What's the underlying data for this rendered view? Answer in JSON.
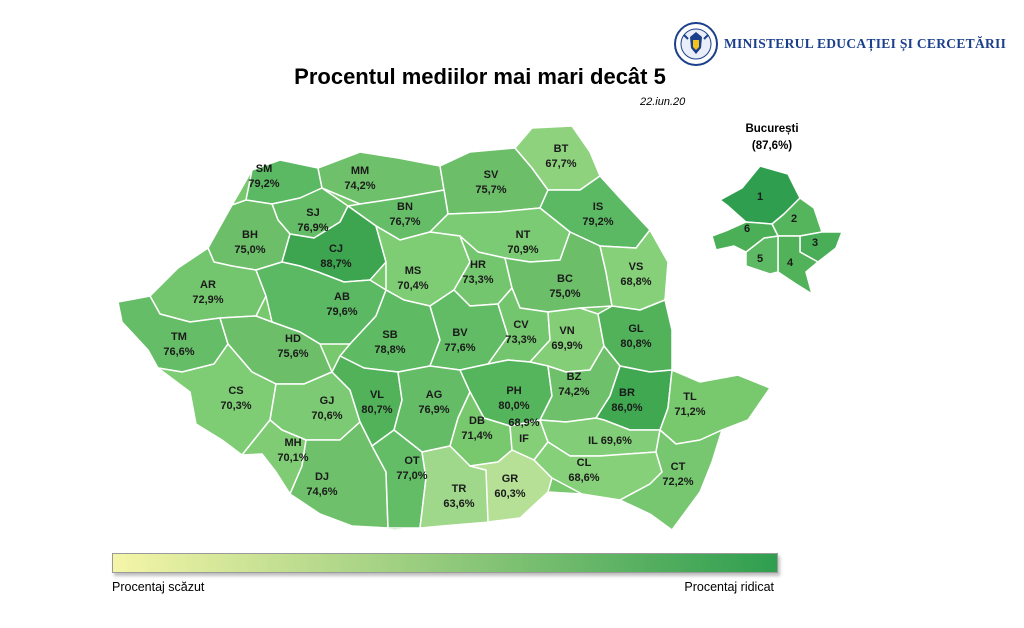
{
  "header": {
    "ministry_name": "MINISTERUL EDUCAȚIEI ȘI CERCETĂRII",
    "seal_icon": "romanian-coat-of-arms-seal",
    "seal_text": "GUVERNUL ROMÂNIEI"
  },
  "title": "Procentul mediilor mai mari decât 5",
  "date": "22.iun.20",
  "colors": {
    "low": "#f5f5a8",
    "high": "#2f9e4f",
    "county_border": "#ffffff",
    "seal_blue": "#1b3f8c"
  },
  "counties": [
    {
      "code": "SM",
      "value": "79,2%"
    },
    {
      "code": "MM",
      "value": "74,2%"
    },
    {
      "code": "SV",
      "value": "75,7%"
    },
    {
      "code": "BT",
      "value": "67,7%"
    },
    {
      "code": "SJ",
      "value": "76,9%"
    },
    {
      "code": "BN",
      "value": "76,7%"
    },
    {
      "code": "IS",
      "value": "79,2%"
    },
    {
      "code": "BH",
      "value": "75,0%"
    },
    {
      "code": "CJ",
      "value": "88,7%"
    },
    {
      "code": "NT",
      "value": "70,9%"
    },
    {
      "code": "MS",
      "value": "70,4%"
    },
    {
      "code": "HR",
      "value": "73,3%"
    },
    {
      "code": "BC",
      "value": "75,0%"
    },
    {
      "code": "VS",
      "value": "68,8%"
    },
    {
      "code": "AR",
      "value": "72,9%"
    },
    {
      "code": "AB",
      "value": "79,6%"
    },
    {
      "code": "TM",
      "value": "76,6%"
    },
    {
      "code": "HD",
      "value": "75,6%"
    },
    {
      "code": "SB",
      "value": "78,8%"
    },
    {
      "code": "BV",
      "value": "77,6%"
    },
    {
      "code": "CV",
      "value": "73,3%"
    },
    {
      "code": "VN",
      "value": "69,9%"
    },
    {
      "code": "GL",
      "value": "80,8%"
    },
    {
      "code": "CS",
      "value": "70,3%"
    },
    {
      "code": "GJ",
      "value": "70,6%"
    },
    {
      "code": "VL",
      "value": "80,7%"
    },
    {
      "code": "AG",
      "value": "76,9%"
    },
    {
      "code": "PH",
      "value": "80,0%"
    },
    {
      "code": "BZ",
      "value": "74,2%"
    },
    {
      "code": "BR",
      "value": "86,0%"
    },
    {
      "code": "TL",
      "value": "71,2%"
    },
    {
      "code": "DB",
      "value": "71,4%"
    },
    {
      "code": "MH",
      "value": "70,1%"
    },
    {
      "code": "IF",
      "value": "68,9%"
    },
    {
      "code": "IL",
      "value": "69,6%"
    },
    {
      "code": "DJ",
      "value": "74,6%"
    },
    {
      "code": "OT",
      "value": "77,0%"
    },
    {
      "code": "TR",
      "value": "63,6%"
    },
    {
      "code": "GR",
      "value": "60,3%"
    },
    {
      "code": "CL",
      "value": "68,6%"
    },
    {
      "code": "CT",
      "value": "72,2%"
    }
  ],
  "bucharest": {
    "name": "București",
    "value": "(87,6%)",
    "sectors": [
      "1",
      "2",
      "3",
      "4",
      "5",
      "6"
    ]
  },
  "legend": {
    "low_label": "Procentaj scăzut",
    "high_label": "Procentaj ridicat"
  }
}
